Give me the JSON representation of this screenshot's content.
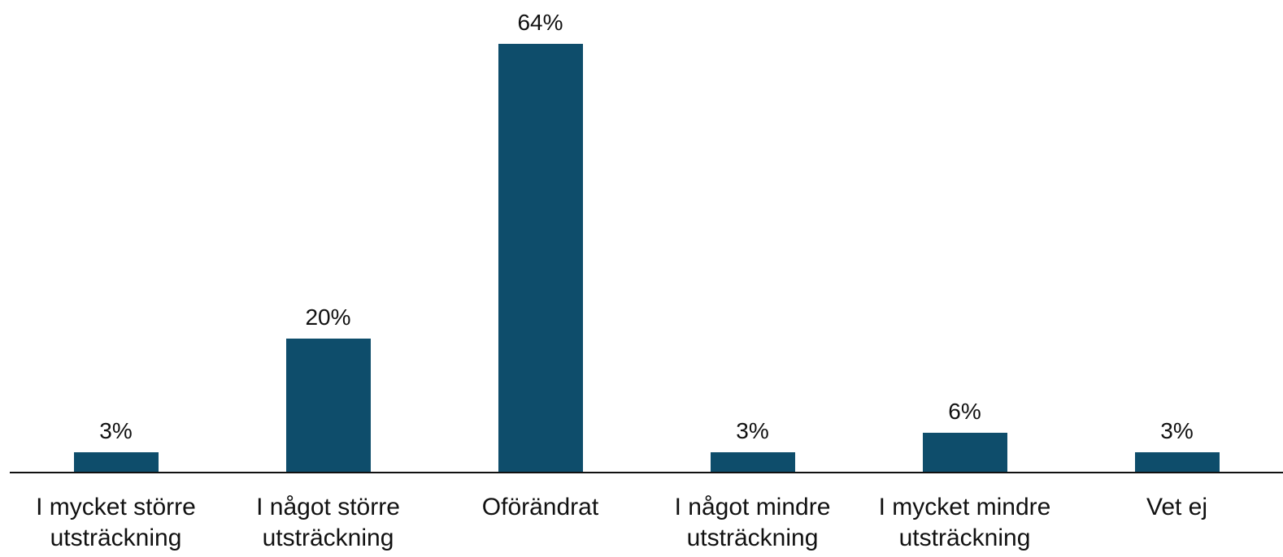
{
  "chart_data": {
    "type": "bar",
    "categories": [
      "I mycket större utsträckning",
      "I något större utsträckning",
      "Oförändrat",
      "I något mindre utsträckning",
      "I mycket mindre utsträckning",
      "Vet ej"
    ],
    "values": [
      3,
      20,
      64,
      3,
      6,
      3
    ],
    "value_labels": [
      "3%",
      "20%",
      "64%",
      "3%",
      "6%",
      "3%"
    ],
    "color": "#0e4d6b"
  }
}
